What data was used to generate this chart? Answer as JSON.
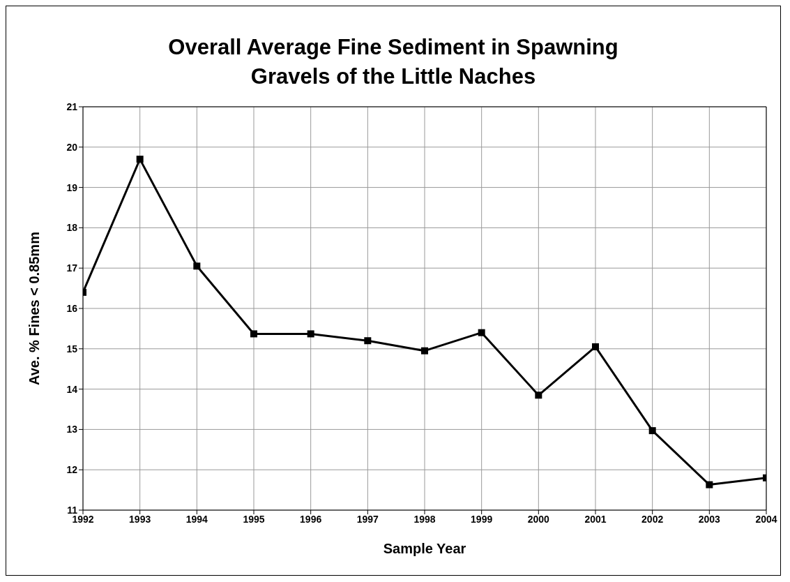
{
  "chart_data": {
    "type": "line",
    "title": "Overall Average Fine Sediment in Spawning Gravels of the Little Naches",
    "xlabel": "Sample Year",
    "ylabel": "Ave. % Fines < 0.85mm",
    "x": [
      1992,
      1993,
      1994,
      1995,
      1996,
      1997,
      1998,
      1999,
      2000,
      2001,
      2002,
      2003,
      2004
    ],
    "series": [
      {
        "color": "#000000",
        "values": [
          16.4,
          19.7,
          17.05,
          15.37,
          15.37,
          15.2,
          14.95,
          15.4,
          13.85,
          15.05,
          12.97,
          11.63,
          11.8
        ]
      }
    ],
    "xlim": [
      1992,
      2004
    ],
    "xticks": [
      1992,
      1993,
      1994,
      1995,
      1996,
      1997,
      1998,
      1999,
      2000,
      2001,
      2002,
      2003,
      2004
    ],
    "ylim": [
      11,
      21
    ],
    "yticks": [
      11,
      12,
      13,
      14,
      15,
      16,
      17,
      18,
      19,
      20,
      21
    ],
    "grid": true,
    "marker": "square",
    "line_style": "solid"
  }
}
